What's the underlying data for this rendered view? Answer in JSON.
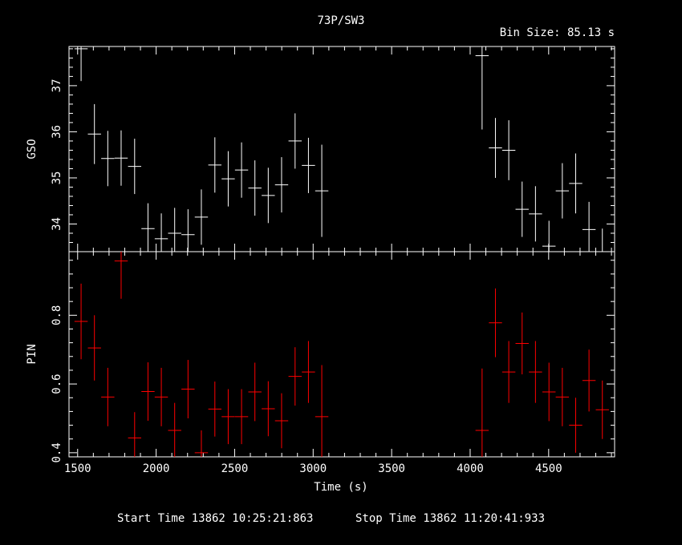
{
  "header": {
    "title": "73P/SW3",
    "bin_size": "Bin Size: 85.13 s"
  },
  "footer": {
    "start_time": "Start Time 13862 10:25:21:863",
    "stop_time": "Stop Time 13862 11:20:41:933"
  },
  "colors": {
    "background": "#000000",
    "axes": "#ffffff",
    "gso": "#ffffff",
    "pin": "#ff0000"
  },
  "chart_data": [
    {
      "type": "scatter",
      "title": "73P/SW3",
      "xlabel": "Time (s)",
      "ylabel": "GSO",
      "xlim": [
        1445,
        4920
      ],
      "ylim": [
        33.4,
        37.85
      ],
      "xticks": [
        1500,
        2000,
        2500,
        3000,
        3500,
        4000,
        4500
      ],
      "yticks": [
        34,
        35,
        36,
        37
      ],
      "yticklabels": [
        "34",
        "35",
        "36",
        "37"
      ],
      "series": [
        {
          "color": "#ffffff",
          "points": [
            {
              "x": 1522,
              "y": 37.8,
              "xerr": 42,
              "yerr": 0.7
            },
            {
              "x": 1607,
              "y": 35.95,
              "xerr": 42,
              "yerr": 0.65
            },
            {
              "x": 1692,
              "y": 35.42,
              "xerr": 42,
              "yerr": 0.6
            },
            {
              "x": 1777,
              "y": 35.43,
              "xerr": 42,
              "yerr": 0.6
            },
            {
              "x": 1863,
              "y": 35.25,
              "xerr": 42,
              "yerr": 0.6
            },
            {
              "x": 1948,
              "y": 33.9,
              "xerr": 42,
              "yerr": 0.55
            },
            {
              "x": 2033,
              "y": 33.68,
              "xerr": 42,
              "yerr": 0.55
            },
            {
              "x": 2118,
              "y": 33.8,
              "xerr": 42,
              "yerr": 0.55
            },
            {
              "x": 2203,
              "y": 33.77,
              "xerr": 42,
              "yerr": 0.55
            },
            {
              "x": 2288,
              "y": 34.15,
              "xerr": 42,
              "yerr": 0.6
            },
            {
              "x": 2374,
              "y": 35.28,
              "xerr": 42,
              "yerr": 0.6
            },
            {
              "x": 2459,
              "y": 34.98,
              "xerr": 42,
              "yerr": 0.6
            },
            {
              "x": 2544,
              "y": 35.17,
              "xerr": 42,
              "yerr": 0.6
            },
            {
              "x": 2629,
              "y": 34.78,
              "xerr": 42,
              "yerr": 0.6
            },
            {
              "x": 2714,
              "y": 34.62,
              "xerr": 42,
              "yerr": 0.6
            },
            {
              "x": 2799,
              "y": 34.85,
              "xerr": 42,
              "yerr": 0.6
            },
            {
              "x": 2885,
              "y": 35.8,
              "xerr": 42,
              "yerr": 0.6
            },
            {
              "x": 2970,
              "y": 35.27,
              "xerr": 42,
              "yerr": 0.6
            },
            {
              "x": 3055,
              "y": 34.72,
              "xerr": 42,
              "yerr": 1.0
            },
            {
              "x": 4076,
              "y": 37.65,
              "xerr": 42,
              "yerr": 1.6
            },
            {
              "x": 4161,
              "y": 35.65,
              "xerr": 42,
              "yerr": 0.65
            },
            {
              "x": 4246,
              "y": 35.6,
              "xerr": 42,
              "yerr": 0.65
            },
            {
              "x": 4331,
              "y": 34.32,
              "xerr": 42,
              "yerr": 0.6
            },
            {
              "x": 4416,
              "y": 34.22,
              "xerr": 42,
              "yerr": 0.6
            },
            {
              "x": 4502,
              "y": 33.52,
              "xerr": 42,
              "yerr": 0.55
            },
            {
              "x": 4587,
              "y": 34.72,
              "xerr": 42,
              "yerr": 0.6
            },
            {
              "x": 4672,
              "y": 34.88,
              "xerr": 42,
              "yerr": 0.65
            },
            {
              "x": 4757,
              "y": 33.88,
              "xerr": 42,
              "yerr": 0.6
            },
            {
              "x": 4842,
              "y": 33.4,
              "xerr": 42,
              "yerr": 0.5
            }
          ]
        }
      ]
    },
    {
      "type": "scatter",
      "xlabel": "Time (s)",
      "ylabel": "PIN",
      "xlim": [
        1445,
        4920
      ],
      "ylim": [
        0.388,
        0.985
      ],
      "xticks": [
        1500,
        2000,
        2500,
        3000,
        3500,
        4000,
        4500
      ],
      "xticklabels": [
        "1500",
        "2000",
        "2500",
        "3000",
        "3500",
        "4000",
        "4500"
      ],
      "yticks": [
        0.4,
        0.6,
        0.8
      ],
      "yticklabels": [
        "0.4",
        "0.6",
        "0.8"
      ],
      "series": [
        {
          "color": "#ff0000",
          "points": [
            {
              "x": 1522,
              "y": 0.782,
              "xerr": 42,
              "yerr": 0.11
            },
            {
              "x": 1607,
              "y": 0.705,
              "xerr": 42,
              "yerr": 0.095
            },
            {
              "x": 1692,
              "y": 0.562,
              "xerr": 42,
              "yerr": 0.085
            },
            {
              "x": 1777,
              "y": 0.958,
              "xerr": 42,
              "yerr": 0.11
            },
            {
              "x": 1863,
              "y": 0.443,
              "xerr": 42,
              "yerr": 0.075
            },
            {
              "x": 1948,
              "y": 0.578,
              "xerr": 42,
              "yerr": 0.085
            },
            {
              "x": 2033,
              "y": 0.562,
              "xerr": 42,
              "yerr": 0.085
            },
            {
              "x": 2118,
              "y": 0.465,
              "xerr": 42,
              "yerr": 0.08
            },
            {
              "x": 2203,
              "y": 0.585,
              "xerr": 42,
              "yerr": 0.085
            },
            {
              "x": 2288,
              "y": 0.4,
              "xerr": 42,
              "yerr": 0.065
            },
            {
              "x": 2374,
              "y": 0.527,
              "xerr": 42,
              "yerr": 0.08
            },
            {
              "x": 2459,
              "y": 0.505,
              "xerr": 42,
              "yerr": 0.08
            },
            {
              "x": 2544,
              "y": 0.505,
              "xerr": 42,
              "yerr": 0.08
            },
            {
              "x": 2629,
              "y": 0.577,
              "xerr": 42,
              "yerr": 0.085
            },
            {
              "x": 2714,
              "y": 0.528,
              "xerr": 42,
              "yerr": 0.08
            },
            {
              "x": 2799,
              "y": 0.493,
              "xerr": 42,
              "yerr": 0.08
            },
            {
              "x": 2885,
              "y": 0.622,
              "xerr": 42,
              "yerr": 0.085
            },
            {
              "x": 2970,
              "y": 0.635,
              "xerr": 42,
              "yerr": 0.09
            },
            {
              "x": 3055,
              "y": 0.505,
              "xerr": 42,
              "yerr": 0.15
            },
            {
              "x": 4076,
              "y": 0.465,
              "xerr": 42,
              "yerr": 0.18
            },
            {
              "x": 4161,
              "y": 0.778,
              "xerr": 42,
              "yerr": 0.1
            },
            {
              "x": 4246,
              "y": 0.635,
              "xerr": 42,
              "yerr": 0.09
            },
            {
              "x": 4331,
              "y": 0.718,
              "xerr": 42,
              "yerr": 0.09
            },
            {
              "x": 4416,
              "y": 0.635,
              "xerr": 42,
              "yerr": 0.09
            },
            {
              "x": 4502,
              "y": 0.577,
              "xerr": 42,
              "yerr": 0.085
            },
            {
              "x": 4587,
              "y": 0.562,
              "xerr": 42,
              "yerr": 0.085
            },
            {
              "x": 4672,
              "y": 0.48,
              "xerr": 42,
              "yerr": 0.08
            },
            {
              "x": 4757,
              "y": 0.61,
              "xerr": 42,
              "yerr": 0.09
            },
            {
              "x": 4842,
              "y": 0.525,
              "xerr": 42,
              "yerr": 0.085
            }
          ]
        }
      ]
    }
  ]
}
